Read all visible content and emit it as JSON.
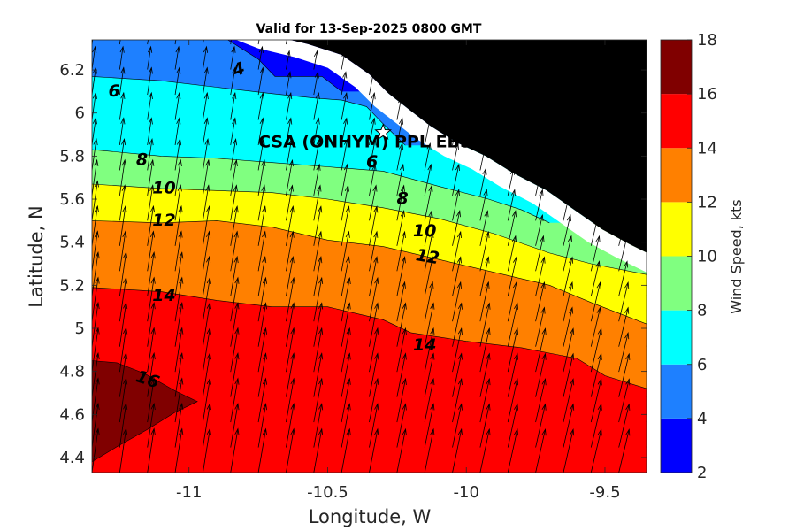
{
  "chart_data": {
    "type": "contour",
    "title": "Valid for 13-Sep-2025 0800 GMT",
    "xlabel": "Longitude, W",
    "ylabel": "Latitude, N",
    "xlim": [
      -11.35,
      -9.35
    ],
    "ylim": [
      4.33,
      6.34
    ],
    "x_ticks": [
      -11,
      -10.5,
      -10,
      -9.5
    ],
    "x_tick_labels": [
      "-11",
      "-10.5",
      "-10",
      "-9.5"
    ],
    "y_ticks": [
      4.4,
      4.6,
      4.8,
      5,
      5.2,
      5.4,
      5.6,
      5.8,
      6,
      6.2
    ],
    "y_tick_labels": [
      "4.4",
      "4.6",
      "4.8",
      "5",
      "5.2",
      "5.4",
      "5.6",
      "5.8",
      "6",
      "6.2"
    ],
    "colorbar": {
      "label": "Wind Speed, kts",
      "range": [
        2,
        18
      ],
      "ticks": [
        2,
        4,
        6,
        8,
        10,
        12,
        14,
        16,
        18
      ],
      "tick_labels": [
        "2",
        "4",
        "6",
        "8",
        "10",
        "12",
        "14",
        "16",
        "18"
      ],
      "bands": [
        {
          "min": 2,
          "max": 4,
          "color": "#0000ff"
        },
        {
          "min": 4,
          "max": 6,
          "color": "#1e80ff"
        },
        {
          "min": 6,
          "max": 8,
          "color": "#00ffff"
        },
        {
          "min": 8,
          "max": 10,
          "color": "#80ff80"
        },
        {
          "min": 10,
          "max": 12,
          "color": "#ffff00"
        },
        {
          "min": 12,
          "max": 14,
          "color": "#ff8000"
        },
        {
          "min": 14,
          "max": 16,
          "color": "#ff0000"
        },
        {
          "min": 16,
          "max": 18,
          "color": "#800000"
        }
      ]
    },
    "land_color": "#000000",
    "contour_boundaries": [
      {
        "level": 4,
        "points": [
          [
            -10.86,
            6.34
          ],
          [
            -10.75,
            6.25
          ],
          [
            -10.69,
            6.17
          ],
          [
            -10.52,
            6.17
          ],
          [
            -10.45,
            6.1
          ]
        ]
      },
      {
        "level": 6,
        "points": [
          [
            -11.35,
            6.17
          ],
          [
            -11.1,
            6.15
          ],
          [
            -10.9,
            6.12
          ],
          [
            -10.7,
            6.09
          ],
          [
            -10.55,
            6.07
          ],
          [
            -10.45,
            6.06
          ],
          [
            -10.36,
            6.03
          ],
          [
            -10.3,
            5.95
          ],
          [
            -10.22,
            5.85
          ]
        ]
      },
      {
        "level": 8,
        "points": [
          [
            -11.35,
            5.83
          ],
          [
            -11.1,
            5.8
          ],
          [
            -10.9,
            5.79
          ],
          [
            -10.7,
            5.77
          ],
          [
            -10.5,
            5.75
          ],
          [
            -10.3,
            5.73
          ],
          [
            -10.1,
            5.66
          ],
          [
            -9.92,
            5.6
          ],
          [
            -9.8,
            5.55
          ],
          [
            -9.7,
            5.49
          ]
        ]
      },
      {
        "level": 10,
        "points": [
          [
            -11.35,
            5.67
          ],
          [
            -11.1,
            5.65
          ],
          [
            -10.9,
            5.64
          ],
          [
            -10.7,
            5.63
          ],
          [
            -10.5,
            5.6
          ],
          [
            -10.3,
            5.56
          ],
          [
            -10.1,
            5.51
          ],
          [
            -9.9,
            5.44
          ],
          [
            -9.7,
            5.35
          ],
          [
            -9.55,
            5.3
          ],
          [
            -9.35,
            5.25
          ]
        ]
      },
      {
        "level": 12,
        "points": [
          [
            -11.35,
            5.5
          ],
          [
            -11.1,
            5.49
          ],
          [
            -10.9,
            5.5
          ],
          [
            -10.7,
            5.47
          ],
          [
            -10.5,
            5.41
          ],
          [
            -10.3,
            5.38
          ],
          [
            -10.1,
            5.32
          ],
          [
            -9.9,
            5.26
          ],
          [
            -9.7,
            5.2
          ],
          [
            -9.55,
            5.12
          ],
          [
            -9.35,
            5.02
          ]
        ]
      },
      {
        "level": 14,
        "points": [
          [
            -11.35,
            5.19
          ],
          [
            -11.1,
            5.17
          ],
          [
            -10.9,
            5.13
          ],
          [
            -10.7,
            5.1
          ],
          [
            -10.5,
            5.1
          ],
          [
            -10.3,
            5.04
          ],
          [
            -10.2,
            4.98
          ],
          [
            -10.0,
            4.94
          ],
          [
            -9.8,
            4.91
          ],
          [
            -9.6,
            4.86
          ],
          [
            -9.5,
            4.78
          ],
          [
            -9.35,
            4.72
          ]
        ]
      }
    ],
    "contour_16_region": [
      [
        -11.35,
        4.85
      ],
      [
        -11.26,
        4.84
      ],
      [
        -11.16,
        4.79
      ],
      [
        -11.05,
        4.71
      ],
      [
        -10.97,
        4.66
      ],
      [
        -11.05,
        4.61
      ],
      [
        -11.15,
        4.53
      ],
      [
        -11.26,
        4.45
      ],
      [
        -11.35,
        4.38
      ]
    ],
    "contour_labels": [
      {
        "text": "4",
        "x": -10.82,
        "y": 6.2,
        "angle": -20
      },
      {
        "text": "6",
        "x": -11.27,
        "y": 6.1,
        "angle": 0
      },
      {
        "text": "8",
        "x": -11.17,
        "y": 5.78,
        "angle": 0
      },
      {
        "text": "10",
        "x": -11.09,
        "y": 5.65,
        "angle": 0
      },
      {
        "text": "12",
        "x": -11.09,
        "y": 5.5,
        "angle": 0
      },
      {
        "text": "14",
        "x": -11.09,
        "y": 5.15,
        "angle": 0
      },
      {
        "text": "16",
        "x": -11.15,
        "y": 4.76,
        "angle": 18
      },
      {
        "text": "6",
        "x": -10.34,
        "y": 5.77,
        "angle": 0
      },
      {
        "text": "8",
        "x": -10.23,
        "y": 5.6,
        "angle": 0
      },
      {
        "text": "10",
        "x": -10.15,
        "y": 5.45,
        "angle": 0
      },
      {
        "text": "12",
        "x": -10.14,
        "y": 5.33,
        "angle": 10
      },
      {
        "text": "14",
        "x": -10.15,
        "y": 4.92,
        "angle": 0
      }
    ],
    "annotation": {
      "text": "CSA (ONHYM) PPL EBS",
      "x": -10.75,
      "y": 5.84
    },
    "site_marker": {
      "x": -10.3,
      "y": 5.91,
      "symbol": "pentagram"
    },
    "wind_vectors": {
      "direction": "from south (northward flow)",
      "length_kts_scale": "proportional to speed"
    }
  }
}
